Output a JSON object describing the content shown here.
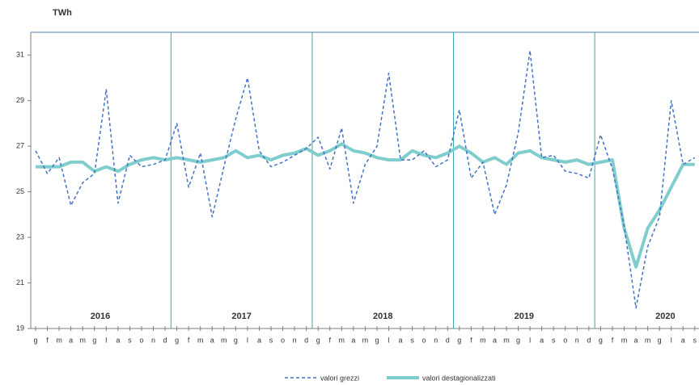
{
  "chart_data": {
    "type": "line",
    "y_label": "TWh",
    "categories": [
      "g",
      "f",
      "m",
      "a",
      "m",
      "g",
      "l",
      "a",
      "s",
      "o",
      "n",
      "d",
      "g",
      "f",
      "m",
      "a",
      "m",
      "g",
      "l",
      "a",
      "s",
      "o",
      "n",
      "d",
      "g",
      "f",
      "m",
      "a",
      "m",
      "g",
      "l",
      "a",
      "s",
      "o",
      "n",
      "d",
      "g",
      "f",
      "m",
      "a",
      "m",
      "g",
      "l",
      "a",
      "s",
      "o",
      "n",
      "d",
      "g",
      "f",
      "m",
      "a",
      "m",
      "g",
      "l",
      "a",
      "s"
    ],
    "years": [
      "2016",
      "2017",
      "2018",
      "2019",
      "2020"
    ],
    "series": [
      {
        "name": "valori grezzi",
        "color": "#4472c4",
        "dashed": true,
        "values": [
          26.8,
          25.8,
          26.5,
          24.4,
          25.4,
          25.8,
          29.5,
          24.5,
          26.6,
          26.1,
          26.2,
          26.4,
          28.0,
          25.2,
          26.7,
          23.9,
          26.1,
          28.2,
          30.0,
          26.8,
          26.1,
          26.3,
          26.6,
          26.9,
          27.4,
          26.0,
          27.8,
          24.5,
          26.2,
          27.0,
          30.2,
          26.4,
          26.4,
          26.8,
          26.1,
          26.4,
          28.6,
          25.6,
          26.3,
          24.0,
          25.3,
          27.6,
          31.2,
          26.5,
          26.6,
          25.9,
          25.8,
          25.6,
          27.5,
          26.0,
          23.5,
          19.9,
          22.6,
          23.9,
          29.0,
          26.2,
          26.5
        ]
      },
      {
        "name": "valori destagionalizzati",
        "color": "#7fcdcd",
        "dashed": false,
        "values": [
          26.1,
          26.1,
          26.1,
          26.3,
          26.3,
          25.9,
          26.1,
          25.9,
          26.2,
          26.4,
          26.5,
          26.4,
          26.5,
          26.4,
          26.3,
          26.4,
          26.5,
          26.8,
          26.5,
          26.6,
          26.4,
          26.6,
          26.7,
          26.9,
          26.6,
          26.8,
          27.1,
          26.8,
          26.7,
          26.5,
          26.4,
          26.4,
          26.8,
          26.6,
          26.5,
          26.7,
          27.0,
          26.7,
          26.3,
          26.5,
          26.2,
          26.7,
          26.8,
          26.5,
          26.4,
          26.3,
          26.4,
          26.2,
          26.3,
          26.4,
          23.4,
          21.7,
          23.4,
          24.2,
          25.2,
          26.2,
          26.2
        ]
      }
    ],
    "ylim": [
      19,
      32
    ],
    "yticks": [
      19,
      21,
      23,
      25,
      27,
      29,
      31
    ]
  }
}
